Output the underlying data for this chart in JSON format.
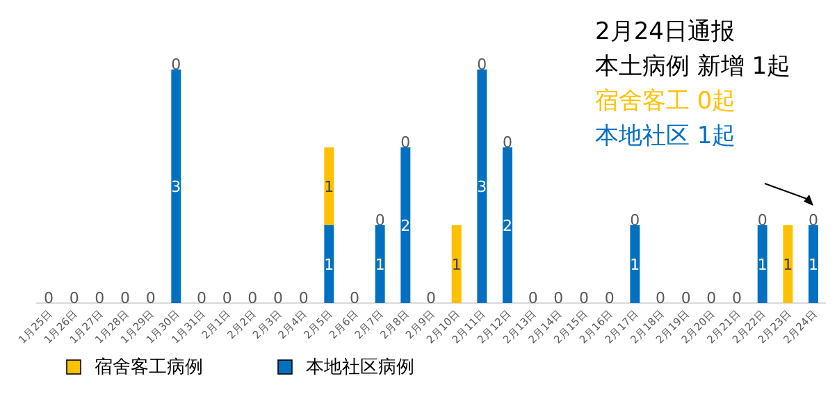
{
  "chart_data": {
    "type": "bar",
    "stacked": true,
    "data_labels": false,
    "legend": "bottom left",
    "title": "2月24日通报",
    "annotations": [
      "本土病例 新增 1起",
      "宿舍客工 0起",
      "本地社区 1起"
    ],
    "categories": [
      "1月25日",
      "1月26日",
      "1月27日",
      "1月28日",
      "1月29日",
      "1月30日",
      "1月31日",
      "2月1日",
      "2月2日",
      "2月3日",
      "2月4日",
      "2月5日",
      "2月6日",
      "2月7日",
      "2月8日",
      "2月9日",
      "2月10日",
      "2月11日",
      "2月12日",
      "2月13日",
      "2月14日",
      "2月15日",
      "2月16日",
      "2月17日",
      "2月18日",
      "2月19日",
      "2月20日",
      "2月21日",
      "2月22日",
      "2月23日",
      "2月24日"
    ],
    "series": [
      {
        "name": "本地社区病例",
        "color": "#0070c0",
        "values": [
          0,
          0,
          0,
          0,
          0,
          3,
          0,
          0,
          0,
          0,
          0,
          1,
          0,
          1,
          2,
          0,
          0,
          3,
          2,
          0,
          0,
          0,
          0,
          1,
          0,
          0,
          0,
          0,
          1,
          0,
          1
        ],
        "value_labels": [
          "0",
          "0",
          "0",
          "0",
          "0",
          "3",
          "0",
          "0",
          "0",
          "0",
          "0",
          "1",
          "0",
          "1",
          "2",
          "0",
          null,
          "3",
          "2",
          "0",
          "0",
          "0",
          "0",
          "1",
          "0",
          "0",
          "0",
          "0",
          "1",
          null,
          "1"
        ]
      },
      {
        "name": "宿舍客工病例",
        "color": "#ffc000",
        "values": [
          0,
          0,
          0,
          0,
          0,
          0,
          0,
          0,
          0,
          0,
          0,
          1,
          0,
          0,
          0,
          0,
          1,
          0,
          0,
          0,
          0,
          0,
          0,
          0,
          0,
          0,
          0,
          0,
          0,
          1,
          0
        ],
        "value_labels": [
          null,
          null,
          null,
          null,
          null,
          "0",
          null,
          null,
          null,
          null,
          null,
          "1",
          null,
          "0",
          "0",
          null,
          "1",
          "0",
          "0",
          null,
          null,
          null,
          null,
          "0",
          null,
          null,
          null,
          null,
          "0",
          "1",
          "0"
        ]
      }
    ]
  }
}
